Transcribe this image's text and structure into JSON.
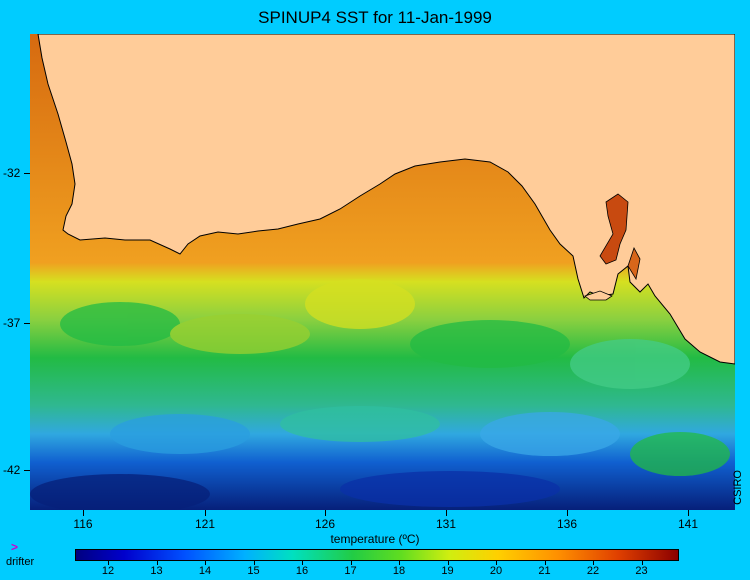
{
  "title": "SPINUP4 SST for 11-Jan-1999",
  "axes": {
    "y_ticks": [
      "-32",
      "-37",
      "-42"
    ],
    "x_ticks": [
      "116",
      "121",
      "126",
      "131",
      "136",
      "141"
    ]
  },
  "colorbar": {
    "title": "temperature (ºC)",
    "labels": [
      "12",
      "13",
      "14",
      "15",
      "16",
      "17",
      "18",
      "19",
      "20",
      "21",
      "22",
      "23"
    ],
    "min_color": "#000080",
    "max_color": "#8b0000"
  },
  "credit": "CSIRO",
  "legend": {
    "drifter_label": "drifter",
    "drifter_icon": ">"
  },
  "colors": {
    "background": "#00ccff",
    "land": "#ffcc99",
    "ocean_warm": "#e07a1a",
    "ocean_mid": "#22bb44",
    "ocean_cold": "#0a2aa0"
  }
}
